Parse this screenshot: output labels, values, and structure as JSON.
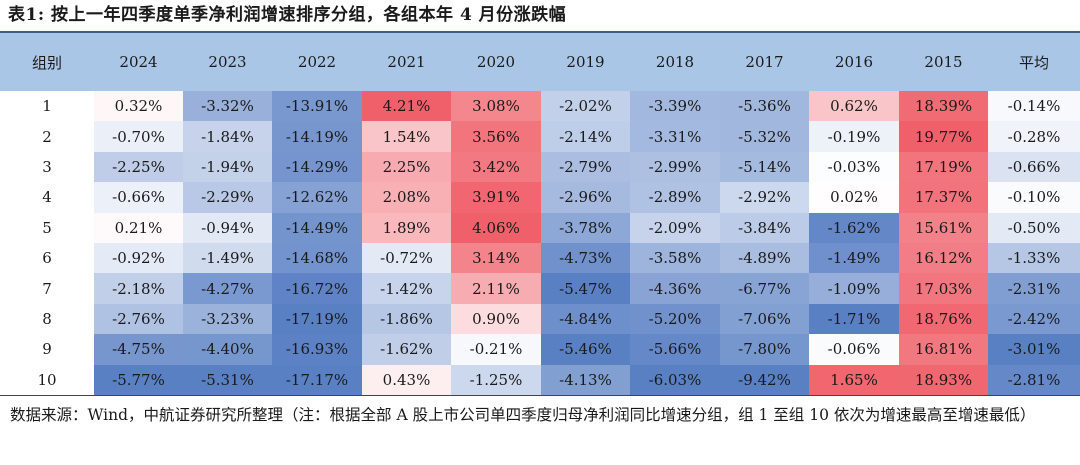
{
  "title": "表1: 按上一年四季度单季净利润增速排序分组，各组本年 4 月份涨跌幅",
  "table": {
    "headers": [
      "组别",
      "2024",
      "2023",
      "2022",
      "2021",
      "2020",
      "2019",
      "2018",
      "2017",
      "2016",
      "2015",
      "平均"
    ],
    "rows": [
      {
        "label": "1",
        "cells": [
          "0.32%",
          "-3.32%",
          "-13.91%",
          "4.21%",
          "3.08%",
          "-2.02%",
          "-3.39%",
          "-5.36%",
          "0.62%",
          "18.39%",
          "-0.14%"
        ]
      },
      {
        "label": "2",
        "cells": [
          "-0.70%",
          "-1.84%",
          "-14.19%",
          "1.54%",
          "3.56%",
          "-2.14%",
          "-3.31%",
          "-5.32%",
          "-0.19%",
          "19.77%",
          "-0.28%"
        ]
      },
      {
        "label": "3",
        "cells": [
          "-2.25%",
          "-1.94%",
          "-14.29%",
          "2.25%",
          "3.42%",
          "-2.79%",
          "-2.99%",
          "-5.14%",
          "-0.03%",
          "17.19%",
          "-0.66%"
        ]
      },
      {
        "label": "4",
        "cells": [
          "-0.66%",
          "-2.29%",
          "-12.62%",
          "2.08%",
          "3.91%",
          "-2.96%",
          "-2.89%",
          "-2.92%",
          "0.02%",
          "17.37%",
          "-0.10%"
        ]
      },
      {
        "label": "5",
        "cells": [
          "0.21%",
          "-0.94%",
          "-14.49%",
          "1.89%",
          "4.06%",
          "-3.78%",
          "-2.09%",
          "-3.84%",
          "-1.62%",
          "15.61%",
          "-0.50%"
        ]
      },
      {
        "label": "6",
        "cells": [
          "-0.92%",
          "-1.49%",
          "-14.68%",
          "-0.72%",
          "3.14%",
          "-4.73%",
          "-3.58%",
          "-4.89%",
          "-1.49%",
          "16.12%",
          "-1.33%"
        ]
      },
      {
        "label": "7",
        "cells": [
          "-2.18%",
          "-4.27%",
          "-16.72%",
          "-1.42%",
          "2.11%",
          "-5.47%",
          "-4.36%",
          "-6.77%",
          "-1.09%",
          "17.03%",
          "-2.31%"
        ]
      },
      {
        "label": "8",
        "cells": [
          "-2.76%",
          "-3.23%",
          "-17.19%",
          "-1.86%",
          "0.90%",
          "-4.84%",
          "-5.20%",
          "-7.06%",
          "-1.71%",
          "18.76%",
          "-2.42%"
        ]
      },
      {
        "label": "9",
        "cells": [
          "-4.75%",
          "-4.40%",
          "-16.93%",
          "-1.62%",
          "-0.21%",
          "-5.46%",
          "-5.66%",
          "-7.80%",
          "-0.06%",
          "16.81%",
          "-3.01%"
        ]
      },
      {
        "label": "10",
        "cells": [
          "-5.77%",
          "-5.31%",
          "-17.17%",
          "0.43%",
          "-1.25%",
          "-4.13%",
          "-6.03%",
          "-9.42%",
          "1.65%",
          "18.93%",
          "-2.81%"
        ]
      }
    ]
  },
  "note": "数据来源：Wind，中航证券研究所整理（注：根据全部 A 股上市公司单四季度归母净利润同比增速分组，组 1 至组 10 依次为增速最高至增速最低）",
  "colors": {
    "header_bg": "#a9c6e6",
    "positive_max": "#f0606a",
    "negative_max": "#5a80c4",
    "rule": "#3a5f86"
  }
}
